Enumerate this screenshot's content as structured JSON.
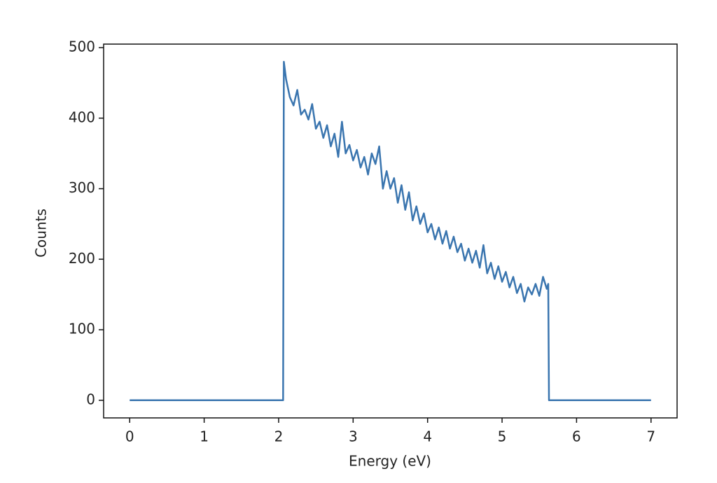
{
  "chart_data": {
    "type": "line",
    "xlabel": "Energy (eV)",
    "ylabel": "Counts",
    "x": [
      0,
      2.06,
      2.07,
      2.1,
      2.15,
      2.2,
      2.25,
      2.3,
      2.35,
      2.4,
      2.45,
      2.5,
      2.55,
      2.6,
      2.65,
      2.7,
      2.75,
      2.8,
      2.85,
      2.9,
      2.95,
      3.0,
      3.05,
      3.1,
      3.15,
      3.2,
      3.25,
      3.3,
      3.35,
      3.4,
      3.45,
      3.5,
      3.55,
      3.6,
      3.65,
      3.7,
      3.75,
      3.8,
      3.85,
      3.9,
      3.95,
      4.0,
      4.05,
      4.1,
      4.15,
      4.2,
      4.25,
      4.3,
      4.35,
      4.4,
      4.45,
      4.5,
      4.55,
      4.6,
      4.65,
      4.7,
      4.75,
      4.8,
      4.85,
      4.9,
      4.95,
      5.0,
      5.05,
      5.1,
      5.15,
      5.2,
      5.25,
      5.3,
      5.35,
      5.4,
      5.45,
      5.5,
      5.55,
      5.6,
      5.62,
      5.63,
      7
    ],
    "series": [
      {
        "color": "#3a75af",
        "values": [
          0,
          0,
          480,
          455,
          430,
          418,
          440,
          405,
          412,
          398,
          420,
          385,
          395,
          372,
          390,
          360,
          378,
          345,
          395,
          350,
          362,
          340,
          355,
          330,
          345,
          320,
          350,
          335,
          360,
          300,
          325,
          300,
          315,
          280,
          305,
          270,
          295,
          255,
          275,
          250,
          265,
          238,
          250,
          228,
          245,
          222,
          240,
          215,
          232,
          210,
          222,
          198,
          215,
          195,
          212,
          188,
          220,
          180,
          195,
          172,
          190,
          168,
          182,
          160,
          175,
          152,
          165,
          140,
          160,
          150,
          165,
          148,
          175,
          158,
          165,
          0,
          0
        ]
      }
    ],
    "xlim": [
      -0.35,
      7.35
    ],
    "ylim": [
      -25,
      505
    ],
    "xticks": [
      0,
      1,
      2,
      3,
      4,
      5,
      6,
      7
    ],
    "yticks": [
      0,
      100,
      200,
      300,
      400,
      500
    ]
  }
}
